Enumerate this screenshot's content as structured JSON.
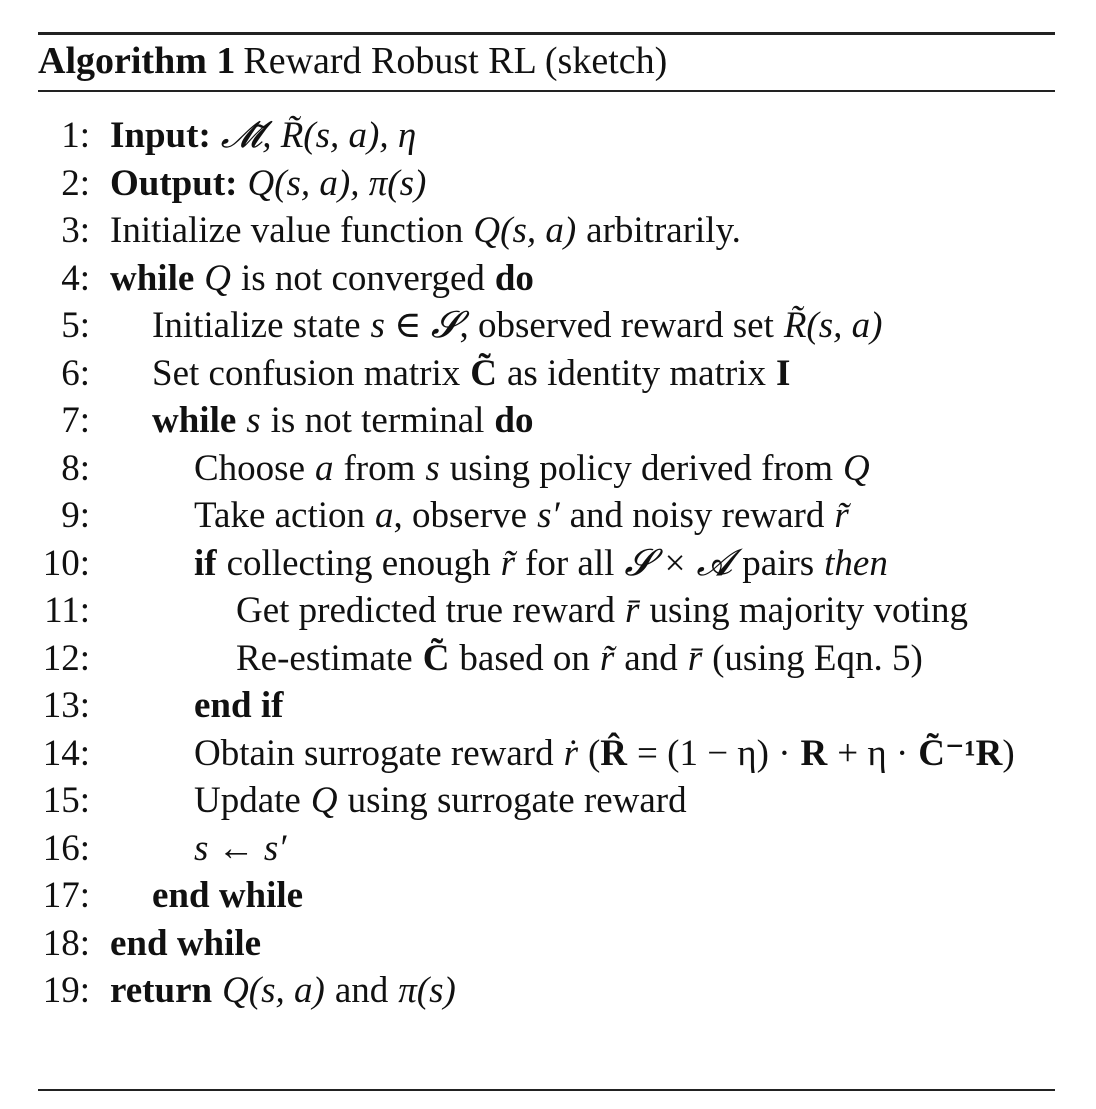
{
  "algorithm": {
    "label": "Algorithm 1",
    "title": "Reward Robust RL (sketch)",
    "lines": [
      {
        "number": "1:",
        "parts": [
          "Input:",
          "𝓜̃, R̃(s, a), η"
        ]
      },
      {
        "number": "2:",
        "parts": [
          "Output:",
          "Q(s, a), π(s)"
        ]
      },
      {
        "number": "3:",
        "parts": [
          "Initialize value function",
          "Q(s, a)",
          "arbitrarily."
        ]
      },
      {
        "number": "4:",
        "parts": [
          "while",
          "Q",
          "is not converged",
          "do"
        ]
      },
      {
        "number": "5:",
        "parts": [
          "Initialize state",
          "s ∈ 𝓢",
          ", observed reward set",
          "R̃(s, a)"
        ]
      },
      {
        "number": "6:",
        "parts": [
          "Set confusion matrix",
          "C̃",
          "as identity matrix",
          "I"
        ]
      },
      {
        "number": "7:",
        "parts": [
          "while",
          "s",
          "is not terminal",
          "do"
        ]
      },
      {
        "number": "8:",
        "parts": [
          "Choose",
          "a",
          "from",
          "s",
          "using policy derived from",
          "Q"
        ]
      },
      {
        "number": "9:",
        "parts": [
          "Take action",
          "a",
          ", observe",
          "s′",
          "and noisy reward",
          "r̃"
        ]
      },
      {
        "number": "10:",
        "parts": [
          "if",
          "collecting enough",
          "r̃",
          "for all",
          "𝓢 × 𝓐",
          "pairs",
          "then"
        ]
      },
      {
        "number": "11:",
        "parts": [
          "Get predicted true reward",
          "r̄",
          "using majority voting"
        ]
      },
      {
        "number": "12:",
        "parts": [
          "Re-estimate",
          "C̃",
          "based on",
          "r̃",
          "and",
          "r̄",
          "(using Eqn. 5)"
        ]
      },
      {
        "number": "13:",
        "parts": [
          "end if"
        ]
      },
      {
        "number": "14:",
        "parts": [
          "Obtain surrogate reward",
          "ṙ",
          "(",
          "R̂",
          "= (1 − η) ·",
          "R",
          "+ η ·",
          "C̃⁻¹R",
          ")"
        ]
      },
      {
        "number": "15:",
        "parts": [
          "Update",
          "Q",
          "using surrogate reward"
        ]
      },
      {
        "number": "16:",
        "parts": [
          "s ← s′"
        ]
      },
      {
        "number": "17:",
        "parts": [
          "end while"
        ]
      },
      {
        "number": "18:",
        "parts": [
          "end while"
        ]
      },
      {
        "number": "19:",
        "parts": [
          "return",
          "Q(s, a)",
          "and",
          "π(s)"
        ]
      }
    ]
  }
}
